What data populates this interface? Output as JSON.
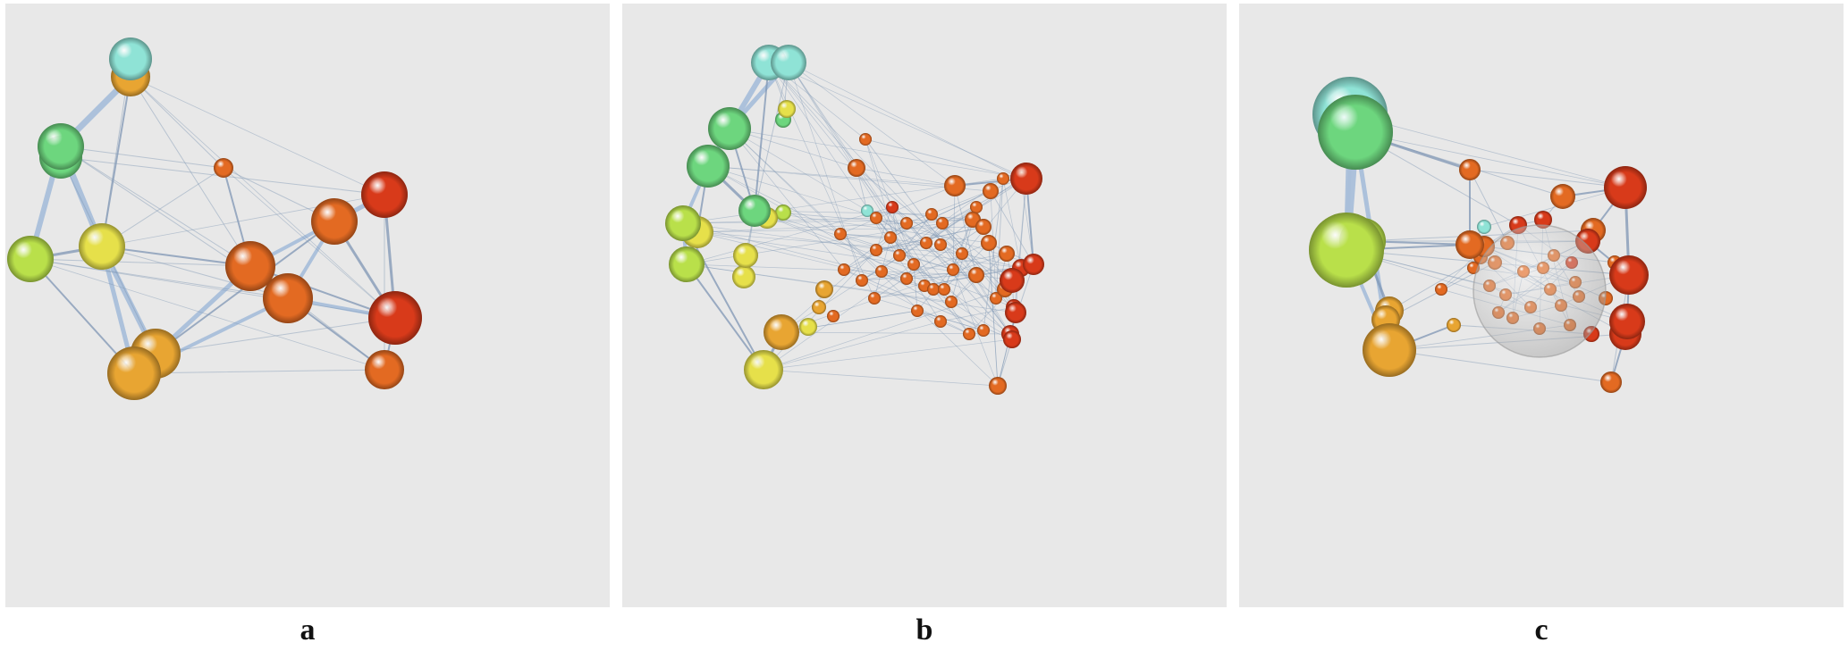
{
  "figure": {
    "panels": [
      {
        "id": "a",
        "label": "a"
      },
      {
        "id": "b",
        "label": "b"
      },
      {
        "id": "c",
        "label": "c"
      }
    ]
  },
  "colors": {
    "background": "#e8e8e8",
    "edge": "#7f96b4",
    "cyan": "#8fe3d6",
    "green": "#6dd67e",
    "lime": "#b9e04a",
    "yellow": "#e6e04a",
    "amber": "#e8a532",
    "orange": "#e36a22",
    "red": "#d83a1a"
  }
}
